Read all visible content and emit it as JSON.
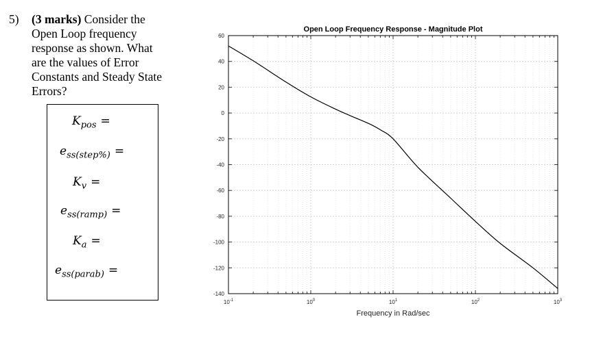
{
  "question": {
    "number": "5)",
    "marks": "(3 marks)",
    "text": "Consider the Open Loop frequency response as shown. What are the values of Error Constants and Steady State Errors?"
  },
  "answers": [
    {
      "sym": "K",
      "sub": "pos",
      "eq": "="
    },
    {
      "sym": "e",
      "sub": "ss(step%)",
      "eq": "="
    },
    {
      "sym": "K",
      "sub": "v",
      "eq": "="
    },
    {
      "sym": "e",
      "sub": "ss(ramp)",
      "eq": "="
    },
    {
      "sym": "K",
      "sub": "a",
      "eq": "="
    },
    {
      "sym": "e",
      "sub": "ss(parab)",
      "eq": "="
    }
  ],
  "chart_data": {
    "type": "line",
    "title": "Open Loop Frequency Response - Magnitude Plot",
    "xlabel": "Frequency in Rad/sec",
    "ylabel": "",
    "xscale": "log",
    "xlim": [
      0.1,
      1000
    ],
    "ylim": [
      -140,
      60
    ],
    "grid": true,
    "xticks": [
      {
        "base": "10",
        "exp": "-1"
      },
      {
        "base": "10",
        "exp": "0"
      },
      {
        "base": "10",
        "exp": "1"
      },
      {
        "base": "10",
        "exp": "2"
      },
      {
        "base": "10",
        "exp": "3"
      }
    ],
    "yticks": [
      60,
      40,
      20,
      0,
      -20,
      -40,
      -60,
      -80,
      -100,
      -120,
      -140
    ],
    "series": [
      {
        "color": "#000000",
        "x": [
          0.1,
          0.2,
          0.5,
          1,
          2,
          3,
          5,
          7,
          10,
          20,
          50,
          100,
          200,
          500,
          1000
        ],
        "y": [
          52,
          40.5,
          24,
          12.5,
          3,
          -2,
          -8,
          -13,
          -20,
          -42,
          -66,
          -84,
          -101,
          -120,
          -136
        ]
      }
    ]
  }
}
